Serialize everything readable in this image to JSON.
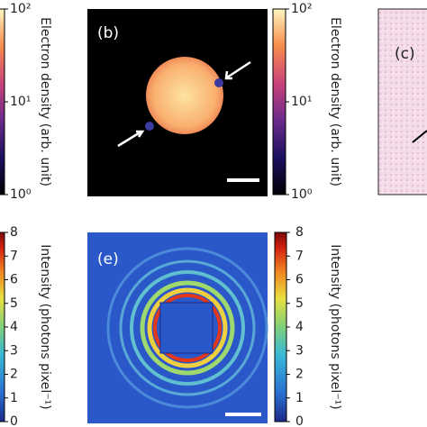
{
  "panels": [
    {
      "label": "(b)"
    },
    {
      "label": "(c)"
    },
    {
      "label": "(e)"
    }
  ],
  "colorbars": [
    {
      "label": "Electron density (arb. unit)",
      "log": true,
      "lim": [
        1,
        100
      ],
      "ticks": [
        {
          "value": 1,
          "label": "10⁰"
        },
        {
          "value": 10,
          "label": "10¹"
        },
        {
          "value": 100,
          "label": "10²"
        }
      ]
    },
    {
      "label": "Electron density (arb. unit)",
      "log": true,
      "lim": [
        1,
        100
      ],
      "ticks": [
        {
          "value": 1,
          "label": "10⁰"
        },
        {
          "value": 10,
          "label": "10¹"
        },
        {
          "value": 100,
          "label": "10²"
        }
      ]
    },
    {
      "label": "Intensity (photons pixel⁻¹)",
      "log": false,
      "lim": [
        0,
        8
      ],
      "ticks": [
        0,
        1,
        2,
        3,
        4,
        5,
        6,
        7,
        8
      ]
    },
    {
      "label": "Intensity (photons pixel⁻¹)",
      "log": false,
      "lim": [
        0,
        8
      ],
      "ticks": [
        0,
        1,
        2,
        3,
        4,
        5,
        6,
        7,
        8
      ]
    }
  ]
}
